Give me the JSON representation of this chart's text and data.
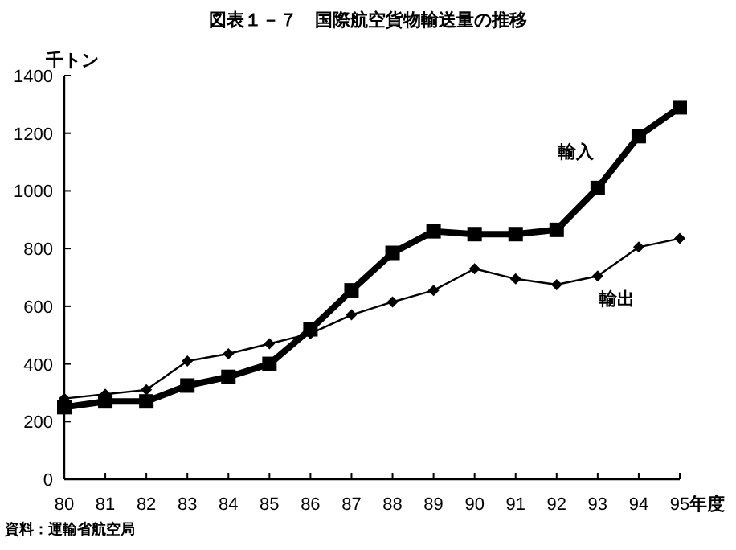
{
  "chart_data": {
    "type": "line",
    "title": "図表１－７　国際航空貨物輸送量の推移",
    "ylabel": "千トン",
    "xlabel": "年度",
    "categories": [
      "80",
      "81",
      "82",
      "83",
      "84",
      "85",
      "86",
      "87",
      "88",
      "89",
      "90",
      "91",
      "92",
      "93",
      "94",
      "95"
    ],
    "series": [
      {
        "name": "輸入",
        "color": "#000000",
        "marker": "square",
        "values": [
          250,
          270,
          270,
          325,
          355,
          400,
          520,
          655,
          785,
          860,
          850,
          850,
          865,
          1010,
          1190,
          1290
        ]
      },
      {
        "name": "輸出",
        "color": "#000000",
        "marker": "diamond",
        "values": [
          280,
          295,
          310,
          410,
          435,
          470,
          505,
          570,
          615,
          655,
          730,
          695,
          675,
          705,
          805,
          835
        ]
      }
    ],
    "ylim": [
      0,
      1400
    ],
    "yticks": [
      0,
      200,
      400,
      600,
      800,
      1000,
      1200,
      1400
    ],
    "grid": false,
    "legend": false,
    "annotations": [
      "資料：運輸省航空局"
    ]
  }
}
